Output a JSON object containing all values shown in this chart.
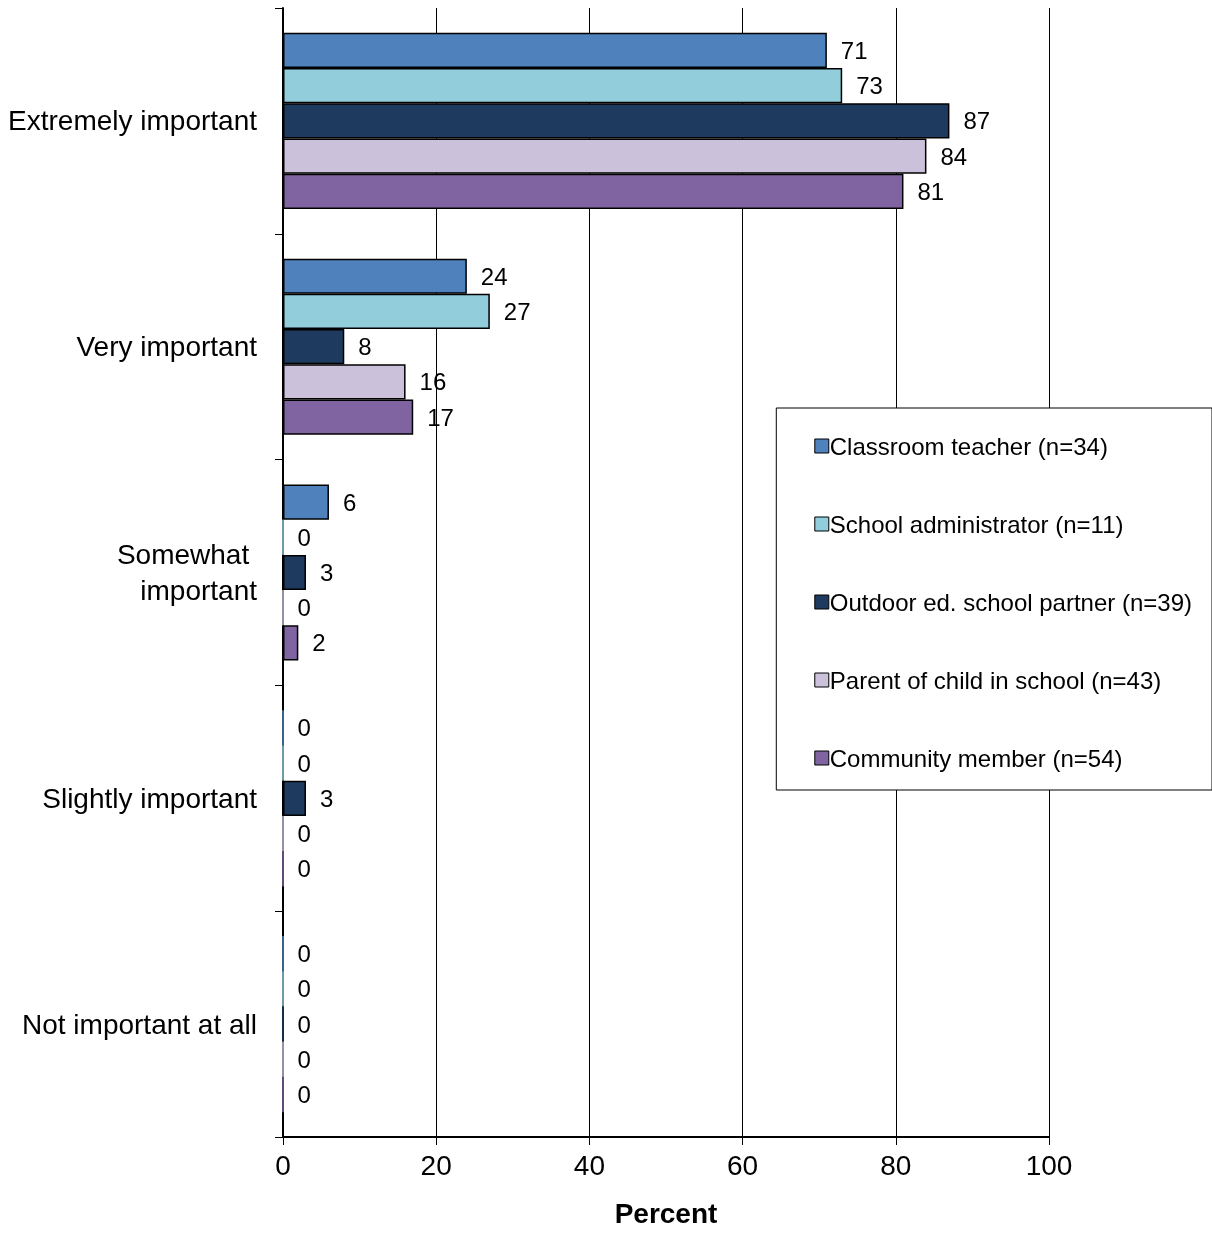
{
  "chart_data": {
    "type": "bar",
    "orientation": "horizontal",
    "xlabel": "Percent",
    "categories": [
      "Extremely important",
      "Very important",
      "Somewhat important",
      "Slightly important",
      "Not important at all"
    ],
    "series": [
      {
        "name": "Classroom teacher (n=34)",
        "color": "#4f81bd",
        "values": [
          71,
          24,
          6,
          0,
          0
        ]
      },
      {
        "name": "School administrator (n=11)",
        "color": "#92cddc",
        "values": [
          73,
          27,
          0,
          0,
          0
        ]
      },
      {
        "name": "Outdoor ed. school partner (n=39)",
        "color": "#1f3a5f",
        "values": [
          87,
          8,
          3,
          3,
          0
        ]
      },
      {
        "name": "Parent of child in school (n=43)",
        "color": "#ccc1da",
        "values": [
          84,
          16,
          0,
          0,
          0
        ]
      },
      {
        "name": "Community member (n=54)",
        "color": "#8064a2",
        "values": [
          81,
          17,
          2,
          0,
          0
        ]
      }
    ],
    "xlim": [
      0,
      100
    ],
    "xticks": [
      0,
      20,
      40,
      60,
      80,
      100
    ],
    "grid": "x",
    "legend": "right",
    "data_labels": true
  }
}
